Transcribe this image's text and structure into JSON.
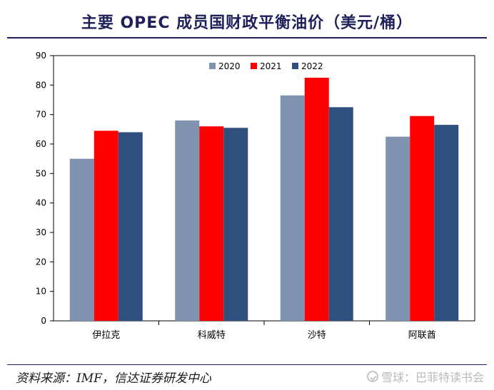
{
  "title": "主要 OPEC 成员国财政平衡油价（美元/桶）",
  "source": "资料来源：IMF，信达证券研发中心",
  "watermark": "雪球：巴菲特读书会",
  "chart_data": {
    "type": "bar",
    "title": "主要 OPEC 成员国财政平衡油价（美元/桶）",
    "xlabel": "",
    "ylabel": "",
    "categories": [
      "伊拉克",
      "科威特",
      "沙特",
      "阿联酋"
    ],
    "series": [
      {
        "name": "2020",
        "color": "#7f93b1",
        "values": [
          55,
          68,
          76.5,
          62.5
        ]
      },
      {
        "name": "2021",
        "color": "#ff0000",
        "values": [
          64.5,
          66,
          82.5,
          69.5
        ]
      },
      {
        "name": "2022",
        "color": "#2f4f7f",
        "values": [
          64,
          65.5,
          72.5,
          66.5
        ]
      }
    ],
    "ylim": [
      0,
      90
    ],
    "yticks": [
      0,
      10,
      20,
      30,
      40,
      50,
      60,
      70,
      80,
      90
    ],
    "grid": false,
    "legend": "top-center"
  }
}
